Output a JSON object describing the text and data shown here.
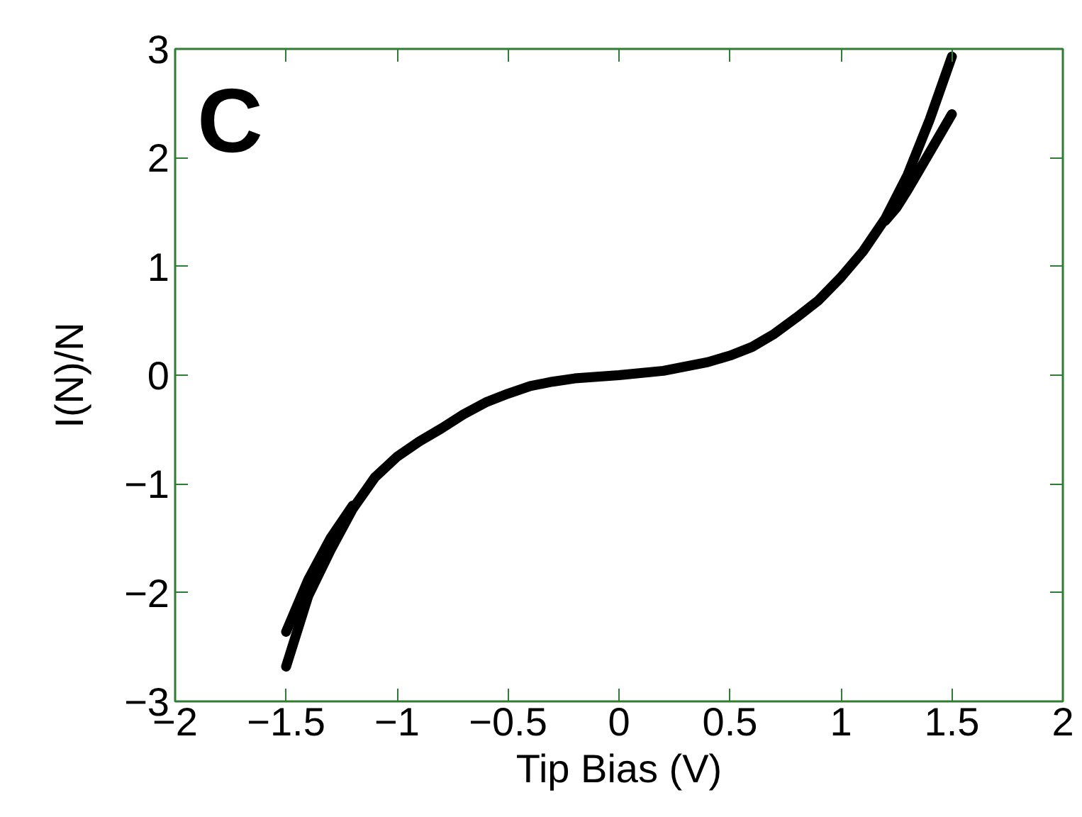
{
  "chart_data": {
    "type": "line",
    "xlabel": "Tip Bias (V)",
    "ylabel": "I(N)/N",
    "annotations": [
      "C"
    ],
    "xlim": [
      -2,
      2
    ],
    "ylim": [
      -3,
      3
    ],
    "xticks": [
      -2,
      -1.5,
      -1,
      -0.5,
      0,
      0.5,
      1,
      1.5,
      2
    ],
    "yticks": [
      -3,
      -2,
      -1,
      0,
      1,
      2,
      3
    ],
    "grid": false,
    "marker": "none",
    "line_style": "solid",
    "series": [
      {
        "color": "#000000",
        "x": [
          -1.5,
          -1.4,
          -1.3,
          -1.2,
          -1.1,
          -1.0,
          -0.9,
          -0.8,
          -0.7,
          -0.6,
          -0.5,
          -0.4,
          -0.3,
          -0.2,
          0,
          0.2,
          0.4,
          0.5,
          0.6,
          0.7,
          0.8,
          0.9,
          1.0,
          1.1,
          1.2,
          1.3,
          1.4,
          1.5
        ],
        "values": [
          -2.68,
          -2.03,
          -1.61,
          -1.23,
          -0.94,
          -0.75,
          -0.61,
          -0.49,
          -0.36,
          -0.25,
          -0.17,
          -0.1,
          -0.06,
          -0.03,
          0,
          0.04,
          0.12,
          0.18,
          0.26,
          0.38,
          0.53,
          0.69,
          0.9,
          1.14,
          1.44,
          1.84,
          2.35,
          2.93
        ]
      },
      {
        "color": "#000000",
        "x": [
          -1.5,
          -1.4,
          -1.3,
          -1.2
        ],
        "values": [
          -2.36,
          -1.88,
          -1.5,
          -1.2
        ]
      },
      {
        "color": "#000000",
        "x": [
          1.2,
          1.25,
          1.3,
          1.4,
          1.5
        ],
        "values": [
          1.42,
          1.54,
          1.7,
          2.05,
          2.4
        ]
      }
    ]
  }
}
